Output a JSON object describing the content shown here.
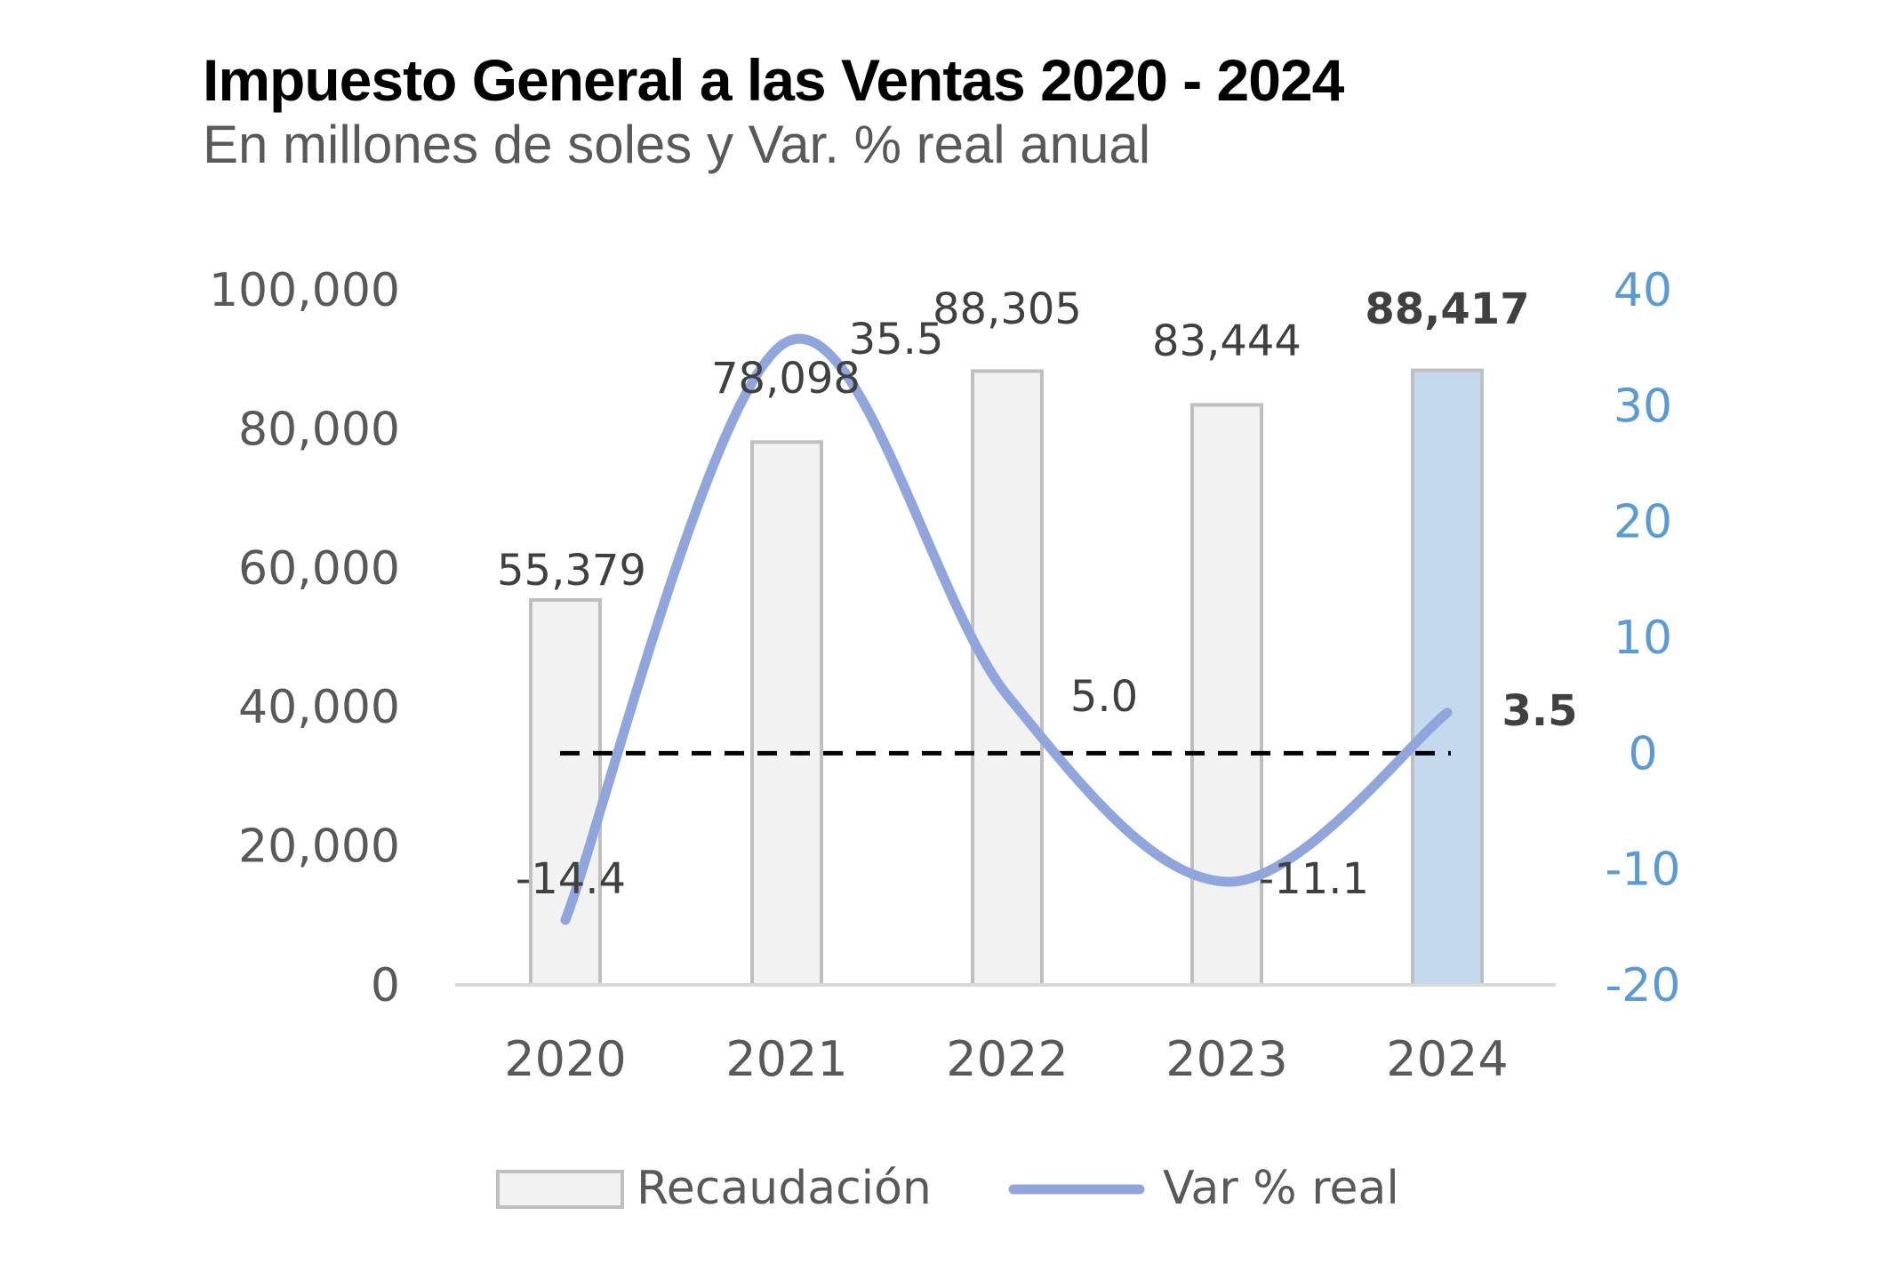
{
  "chart_data": {
    "type": "bar",
    "title": "Impuesto General a las Ventas 2020 - 2024",
    "subtitle": "En millones de soles y Var. % real anual",
    "categories": [
      "2020",
      "2021",
      "2022",
      "2023",
      "2024"
    ],
    "series": [
      {
        "name": "Recaudación",
        "type": "bar",
        "axis": "left",
        "values": [
          55379,
          78098,
          88305,
          83444,
          88417
        ],
        "labels": [
          "55,379",
          "78,098",
          "88,305",
          "83,444",
          "88,417"
        ],
        "color": "#f2f2f2",
        "highlight_color": "#c5d9ee",
        "highlight_index": 4
      },
      {
        "name": "Var % real",
        "type": "line",
        "axis": "right",
        "smooth": true,
        "values": [
          -14.4,
          35.5,
          5.0,
          -11.1,
          3.5
        ],
        "labels": [
          "-14.4",
          "35.5",
          "5.0",
          "-11.1",
          "3.5"
        ],
        "color": "#8fa5dc"
      }
    ],
    "left_axis": {
      "ylim": [
        0,
        100000
      ],
      "ticks": [
        "0",
        "20,000",
        "40,000",
        "60,000",
        "80,000",
        "100,000"
      ]
    },
    "right_axis": {
      "ylim": [
        -20,
        40
      ],
      "ticks": [
        "-20",
        "-10",
        "0",
        "10",
        "20",
        "30",
        "40"
      ],
      "color": "#5b9bd5"
    },
    "reference_line": {
      "value": 0,
      "axis": "right",
      "style": "dashed",
      "color": "#000000"
    },
    "grid": false,
    "legend_position": "bottom"
  }
}
